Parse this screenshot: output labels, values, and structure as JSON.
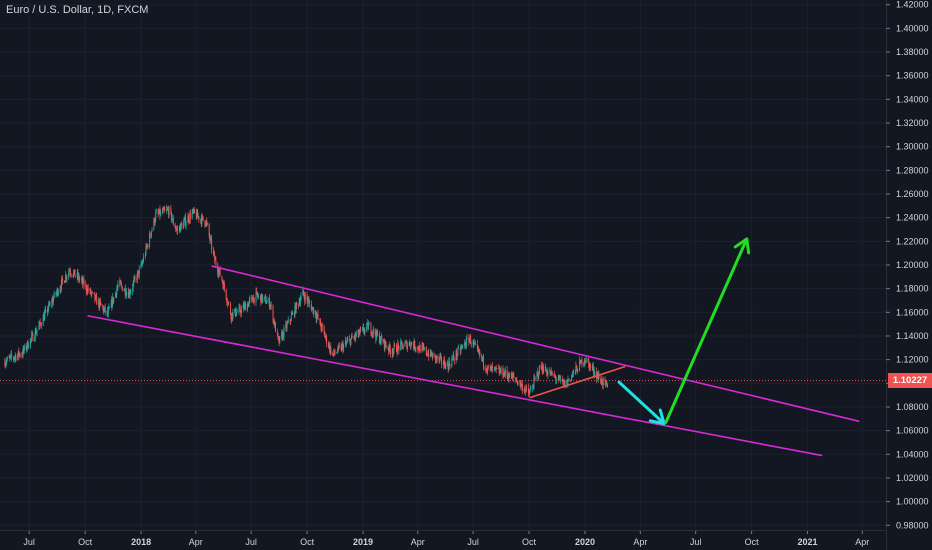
{
  "header": {
    "symbol_title": "Euro / U.S. Dollar, 1D, FXCM"
  },
  "last_price": {
    "label": "1.10227",
    "value": 1.10227,
    "color": "#ef5350"
  },
  "colors": {
    "background": "#131722",
    "text": "#d1d4dc",
    "up": "#26a69a",
    "down": "#ef5350",
    "channel": "#d62ad6",
    "support_line": "#ef5350",
    "arrow_down": "#20e0e0",
    "arrow_up": "#22dd22"
  },
  "chart_data": {
    "type": "candlestick",
    "title": "Euro / U.S. Dollar, 1D, FXCM",
    "y_tick_labels": [
      "1.42000",
      "1.40000",
      "1.38000",
      "1.36000",
      "1.34000",
      "1.32000",
      "1.30000",
      "1.28000",
      "1.26000",
      "1.24000",
      "1.22000",
      "1.20000",
      "1.18000",
      "1.16000",
      "1.14000",
      "1.12000",
      "1.10000",
      "1.08000",
      "1.06000",
      "1.04000",
      "1.02000",
      "1.00000",
      "0.98000"
    ],
    "y_ticks": [
      1.42,
      1.4,
      1.38,
      1.36,
      1.34,
      1.32,
      1.3,
      1.28,
      1.26,
      1.24,
      1.22,
      1.2,
      1.18,
      1.16,
      1.14,
      1.12,
      1.1,
      1.08,
      1.06,
      1.04,
      1.02,
      1.0,
      0.98
    ],
    "ylim": [
      0.976,
      1.424
    ],
    "x_tick_labels": [
      "Jul",
      "Oct",
      "2018",
      "Apr",
      "Jul",
      "Oct",
      "2019",
      "Apr",
      "Jul",
      "Oct",
      "2020",
      "Apr",
      "Jul",
      "Oct",
      "2021",
      "Apr"
    ],
    "x_ticks": [
      "2017-07-01",
      "2017-10-01",
      "2018-01-01",
      "2018-04-01",
      "2018-07-01",
      "2018-10-01",
      "2019-01-01",
      "2019-04-01",
      "2019-07-01",
      "2019-10-01",
      "2020-01-01",
      "2020-04-01",
      "2020-07-01",
      "2020-10-01",
      "2021-01-01",
      "2021-04-01"
    ],
    "xlim": [
      "2017-05-14",
      "2021-05-10"
    ],
    "price_path": [
      [
        "2017-05-20",
        1.118
      ],
      [
        "2017-06-20",
        1.126
      ],
      [
        "2017-07-15",
        1.146
      ],
      [
        "2017-08-10",
        1.172
      ],
      [
        "2017-09-05",
        1.196
      ],
      [
        "2017-09-22",
        1.188
      ],
      [
        "2017-10-10",
        1.176
      ],
      [
        "2017-11-07",
        1.158
      ],
      [
        "2017-11-25",
        1.184
      ],
      [
        "2017-12-12",
        1.176
      ],
      [
        "2018-01-01",
        1.198
      ],
      [
        "2018-01-25",
        1.242
      ],
      [
        "2018-02-15",
        1.246
      ],
      [
        "2018-03-01",
        1.229
      ],
      [
        "2018-03-27",
        1.244
      ],
      [
        "2018-04-18",
        1.236
      ],
      [
        "2018-05-01",
        1.206
      ],
      [
        "2018-05-15",
        1.186
      ],
      [
        "2018-05-29",
        1.158
      ],
      [
        "2018-06-15",
        1.162
      ],
      [
        "2018-07-09",
        1.174
      ],
      [
        "2018-08-01",
        1.168
      ],
      [
        "2018-08-15",
        1.134
      ],
      [
        "2018-09-24",
        1.176
      ],
      [
        "2018-10-16",
        1.158
      ],
      [
        "2018-11-12",
        1.124
      ],
      [
        "2018-12-10",
        1.136
      ],
      [
        "2019-01-10",
        1.148
      ],
      [
        "2019-02-15",
        1.128
      ],
      [
        "2019-03-20",
        1.134
      ],
      [
        "2019-04-10",
        1.128
      ],
      [
        "2019-05-20",
        1.115
      ],
      [
        "2019-06-25",
        1.138
      ],
      [
        "2019-07-25",
        1.112
      ],
      [
        "2019-08-20",
        1.109
      ],
      [
        "2019-09-10",
        1.103
      ],
      [
        "2019-10-01",
        1.091
      ],
      [
        "2019-10-20",
        1.114
      ],
      [
        "2019-11-29",
        1.099
      ],
      [
        "2019-12-31",
        1.121
      ],
      [
        "2020-01-25",
        1.104
      ],
      [
        "2020-02-07",
        1.096
      ]
    ],
    "annotations": [
      {
        "type": "trendline",
        "name": "channel-upper",
        "start": [
          "2018-04-28",
          1.199
        ],
        "end": [
          "2021-03-26",
          1.068
        ]
      },
      {
        "type": "trendline",
        "name": "channel-lower",
        "start": [
          "2017-10-06",
          1.157
        ],
        "end": [
          "2021-01-24",
          1.039
        ]
      },
      {
        "type": "trendline",
        "name": "support-line",
        "start": [
          "2019-10-03",
          1.088
        ],
        "end": [
          "2020-03-06",
          1.114
        ]
      },
      {
        "type": "arrow",
        "name": "down-arrow",
        "start": [
          "2020-02-26",
          1.101
        ],
        "end": [
          "2020-05-10",
          1.066
        ]
      },
      {
        "type": "arrow",
        "name": "up-arrow",
        "start": [
          "2020-05-13",
          1.067
        ],
        "end": [
          "2020-09-23",
          1.222
        ]
      }
    ],
    "last_price_line": 1.10227
  }
}
